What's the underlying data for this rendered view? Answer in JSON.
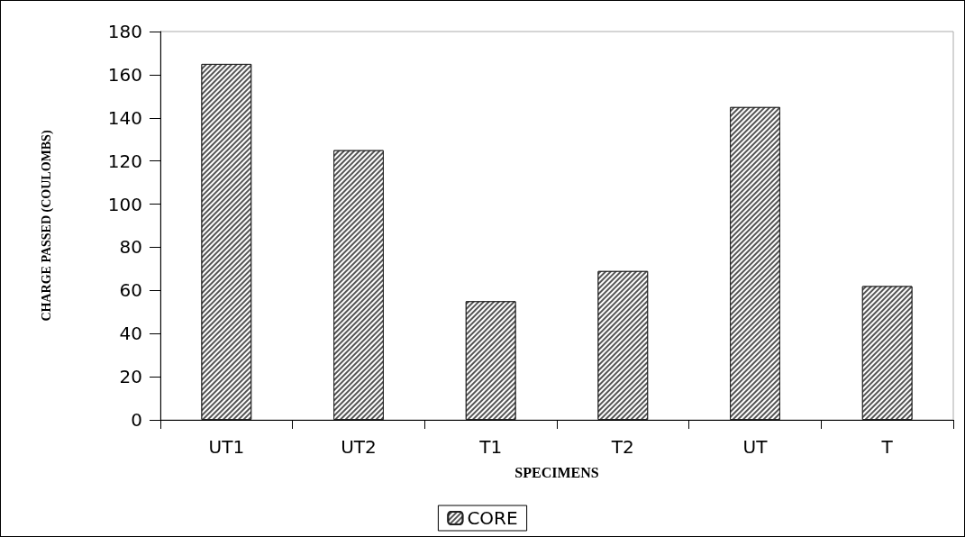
{
  "chart_data": {
    "type": "bar",
    "xlabel": "SPECIMENS",
    "ylabel": "CHARGE PASSED (COULOMBS)",
    "categories": [
      "UT1",
      "UT2",
      "T1",
      "T2",
      "UT",
      "T"
    ],
    "series": [
      {
        "name": "CORE",
        "color": "#555555",
        "values": [
          165,
          125,
          55,
          69,
          145,
          62
        ]
      }
    ],
    "ylim": [
      0,
      180
    ],
    "yticks": [
      0,
      20,
      40,
      60,
      80,
      100,
      120,
      140,
      160,
      180
    ],
    "legend": "bottom"
  }
}
